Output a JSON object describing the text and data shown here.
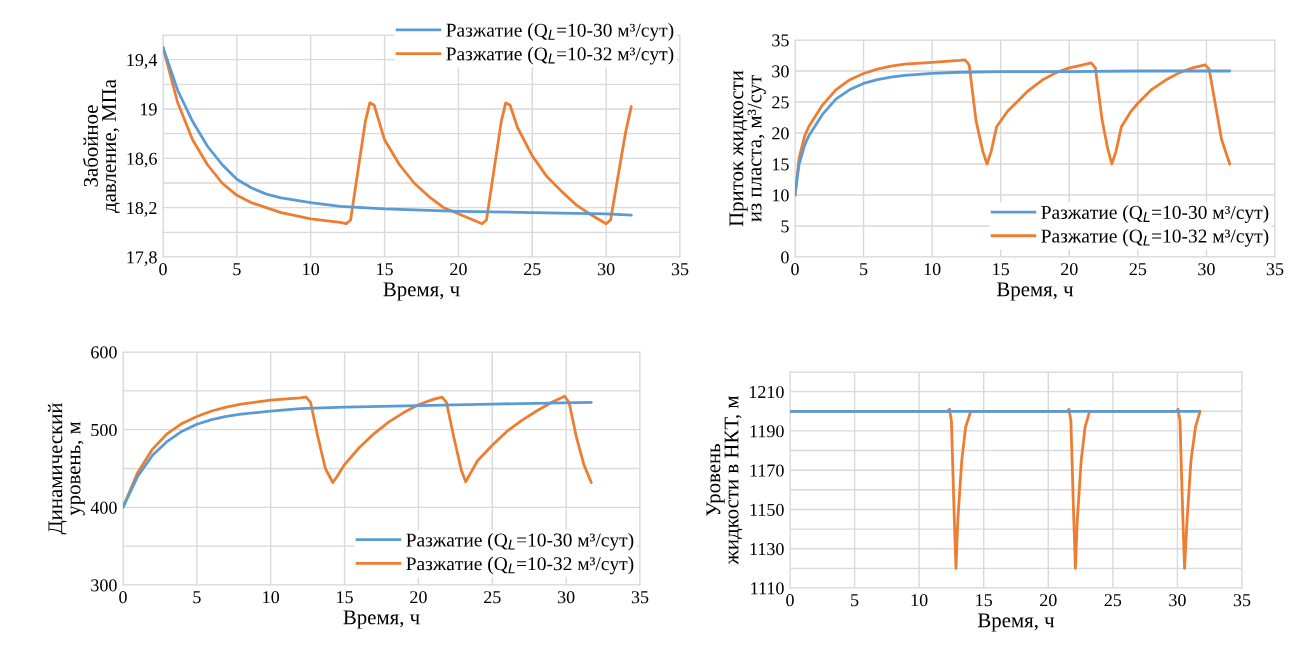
{
  "chart_data": [
    {
      "type": "line",
      "xlabel": "Время, ч",
      "ylabel": "Забойное\nдавление, МПа",
      "xlim": [
        0,
        35
      ],
      "xticks": [
        0,
        5,
        10,
        15,
        20,
        25,
        30,
        35
      ],
      "ylim": [
        17.8,
        19.6
      ],
      "yticks": [
        {
          "value": 17.8,
          "label": "17,8"
        },
        {
          "value": 18.0,
          "label": null
        },
        {
          "value": 18.2,
          "label": "18,2"
        },
        {
          "value": 18.4,
          "label": null
        },
        {
          "value": 18.6,
          "label": "18,6"
        },
        {
          "value": 18.8,
          "label": null
        },
        {
          "value": 19.0,
          "label": "19"
        },
        {
          "value": 19.2,
          "label": null
        },
        {
          "value": 19.4,
          "label": "19,4"
        },
        {
          "value": 19.6,
          "label": null
        }
      ],
      "grid": true,
      "legend": "top right",
      "series": [
        {
          "name": "Разжатие (Q$_{L}$=10-30 м³/сут)",
          "color": "#5b9bd5",
          "x": [
            0,
            1,
            2,
            3,
            4,
            5,
            6,
            7,
            8,
            10,
            12,
            15,
            20,
            25,
            30,
            31.7
          ],
          "values": [
            19.5,
            19.15,
            18.9,
            18.7,
            18.55,
            18.43,
            18.36,
            18.31,
            18.28,
            18.24,
            18.21,
            18.19,
            18.17,
            18.16,
            18.15,
            18.14
          ]
        },
        {
          "name": "Разжатие (Q$_{L}$=10-32 м³/сут)",
          "color": "#ed7d31",
          "x": [
            0,
            1,
            2,
            3,
            4,
            5,
            6,
            8,
            10,
            12,
            12.4,
            12.7,
            13.2,
            13.7,
            14.0,
            14.3,
            15,
            16,
            17,
            18,
            19,
            20,
            21,
            21.6,
            21.9,
            22.4,
            22.9,
            23.2,
            23.5,
            24,
            25,
            26,
            27,
            28,
            29,
            30,
            30.3,
            30.8,
            31.3,
            31.7
          ],
          "values": [
            19.5,
            19.05,
            18.75,
            18.55,
            18.4,
            18.3,
            18.24,
            18.16,
            18.11,
            18.08,
            18.07,
            18.1,
            18.5,
            18.9,
            19.05,
            19.03,
            18.75,
            18.55,
            18.4,
            18.29,
            18.2,
            18.15,
            18.1,
            18.07,
            18.1,
            18.5,
            18.9,
            19.05,
            19.03,
            18.85,
            18.62,
            18.45,
            18.33,
            18.22,
            18.14,
            18.07,
            18.1,
            18.45,
            18.8,
            19.02
          ]
        }
      ]
    },
    {
      "type": "line",
      "xlabel": "Время, ч",
      "ylabel": "Приток жидкости\nиз пласта, м³/сут",
      "xlim": [
        0,
        35
      ],
      "xticks": [
        0,
        5,
        10,
        15,
        20,
        25,
        30,
        35
      ],
      "ylim": [
        0,
        35
      ],
      "yticks": [
        0,
        5,
        10,
        15,
        20,
        25,
        30,
        35
      ],
      "grid": true,
      "legend": "bottom right",
      "series": [
        {
          "name": "Разжатие (Q$_{L}$=10-30 м³/сут)",
          "color": "#5b9bd5",
          "x": [
            0,
            0.3,
            0.7,
            1,
            2,
            3,
            4,
            5,
            6,
            7,
            8,
            10,
            12,
            15,
            20,
            25,
            31.7
          ],
          "values": [
            10,
            15,
            18,
            19.5,
            23,
            25.5,
            27,
            28,
            28.6,
            29,
            29.3,
            29.6,
            29.8,
            29.9,
            29.9,
            30,
            30
          ]
        },
        {
          "name": "Разжатие (Q$_{L}$=10-32 м³/сут)",
          "color": "#ed7d31",
          "x": [
            0,
            0.3,
            0.7,
            1,
            2,
            3,
            4,
            5,
            6,
            7,
            8,
            10,
            12,
            12.4,
            12.7,
            13.2,
            13.7,
            14.0,
            14.3,
            14.7,
            15.5,
            17,
            18,
            19,
            20,
            21,
            21.6,
            21.9,
            22.4,
            22.8,
            23.1,
            23.4,
            23.8,
            24.5,
            25,
            26,
            27,
            28,
            29,
            29.9,
            30.2,
            30.7,
            31.1,
            31.7
          ],
          "values": [
            10,
            16,
            19.5,
            21,
            24.5,
            27,
            28.6,
            29.6,
            30.3,
            30.8,
            31.1,
            31.4,
            31.7,
            31.8,
            31,
            22,
            17,
            15,
            17,
            21,
            23.5,
            26.8,
            28.5,
            29.7,
            30.5,
            31,
            31.3,
            30.5,
            22,
            17.5,
            15,
            17,
            21,
            23.5,
            24.8,
            27,
            28.5,
            29.7,
            30.5,
            31,
            30.3,
            24,
            19,
            15
          ]
        }
      ]
    },
    {
      "type": "line",
      "xlabel": "Время, ч",
      "ylabel": "Динамический\nуровень, м",
      "xlim": [
        0,
        35
      ],
      "xticks": [
        0,
        5,
        10,
        15,
        20,
        25,
        30,
        35
      ],
      "ylim": [
        300,
        600
      ],
      "yticks": [
        300,
        {
          "value": 350,
          "label": null
        },
        400,
        {
          "value": 450,
          "label": null
        },
        500,
        {
          "value": 550,
          "label": null
        },
        600
      ],
      "grid": true,
      "legend": "bottom right",
      "series": [
        {
          "name": "Разжатие (Q$_{L}$=10-30 м³/сут)",
          "color": "#5b9bd5",
          "x": [
            0,
            1,
            2,
            3,
            4,
            5,
            6,
            7,
            8,
            10,
            12,
            15,
            20,
            25,
            31.7
          ],
          "values": [
            400,
            440,
            467,
            485,
            498,
            507,
            513,
            517,
            520,
            524,
            527,
            529,
            531,
            533,
            535
          ]
        },
        {
          "name": "Разжатие (Q$_{L}$=10-32 м³/сут)",
          "color": "#ed7d31",
          "x": [
            0,
            1,
            2,
            3,
            4,
            5,
            6,
            7,
            8,
            10,
            12,
            12.4,
            12.7,
            13.2,
            13.7,
            14.2,
            14.5,
            15,
            16,
            17,
            18,
            19,
            20,
            21,
            21.6,
            21.9,
            22.4,
            22.9,
            23.2,
            23.5,
            24,
            25,
            26,
            27,
            28,
            29,
            29.9,
            30.2,
            30.7,
            31.2,
            31.7
          ],
          "values": [
            400,
            445,
            475,
            495,
            508,
            517,
            524,
            529,
            533,
            538,
            541,
            542,
            535,
            490,
            450,
            432,
            440,
            455,
            477,
            495,
            510,
            522,
            532,
            539,
            542,
            535,
            490,
            448,
            433,
            443,
            460,
            480,
            498,
            512,
            524,
            535,
            543,
            535,
            490,
            455,
            432
          ]
        }
      ]
    },
    {
      "type": "line",
      "xlabel": "Время, ч",
      "ylabel": "Уровень\nжидкости в НКТ, м",
      "xlim": [
        0,
        35
      ],
      "xticks": [
        0,
        5,
        10,
        15,
        20,
        25,
        30,
        35
      ],
      "ylim": [
        1110,
        1220
      ],
      "yticks": [
        1110,
        {
          "value": 1120,
          "label": null
        },
        1130,
        {
          "value": 1140,
          "label": null
        },
        1150,
        {
          "value": 1160,
          "label": null
        },
        1170,
        {
          "value": 1180,
          "label": null
        },
        1190,
        {
          "value": 1200,
          "label": null
        },
        1210,
        {
          "value": 1220,
          "label": null
        }
      ],
      "grid": true,
      "series": [
        {
          "color": "#5b9bd5",
          "x": [
            0,
            31.7
          ],
          "values": [
            1200,
            1200
          ]
        },
        {
          "color": "#ed7d31",
          "x": [
            0,
            12.2,
            12.35,
            12.5,
            12.7,
            12.85,
            13.0,
            13.3,
            13.6,
            14.0,
            21.5,
            21.6,
            21.75,
            21.95,
            22.1,
            22.25,
            22.55,
            22.85,
            23.2,
            29.95,
            30.05,
            30.2,
            30.4,
            30.55,
            30.75,
            31.05,
            31.4,
            31.75
          ],
          "values": [
            1200,
            1200,
            1201,
            1195,
            1150,
            1120,
            1145,
            1175,
            1192,
            1200,
            1200,
            1201,
            1195,
            1150,
            1120,
            1145,
            1175,
            1192,
            1200,
            1200,
            1201,
            1195,
            1150,
            1120,
            1145,
            1175,
            1192,
            1200
          ]
        }
      ]
    }
  ]
}
